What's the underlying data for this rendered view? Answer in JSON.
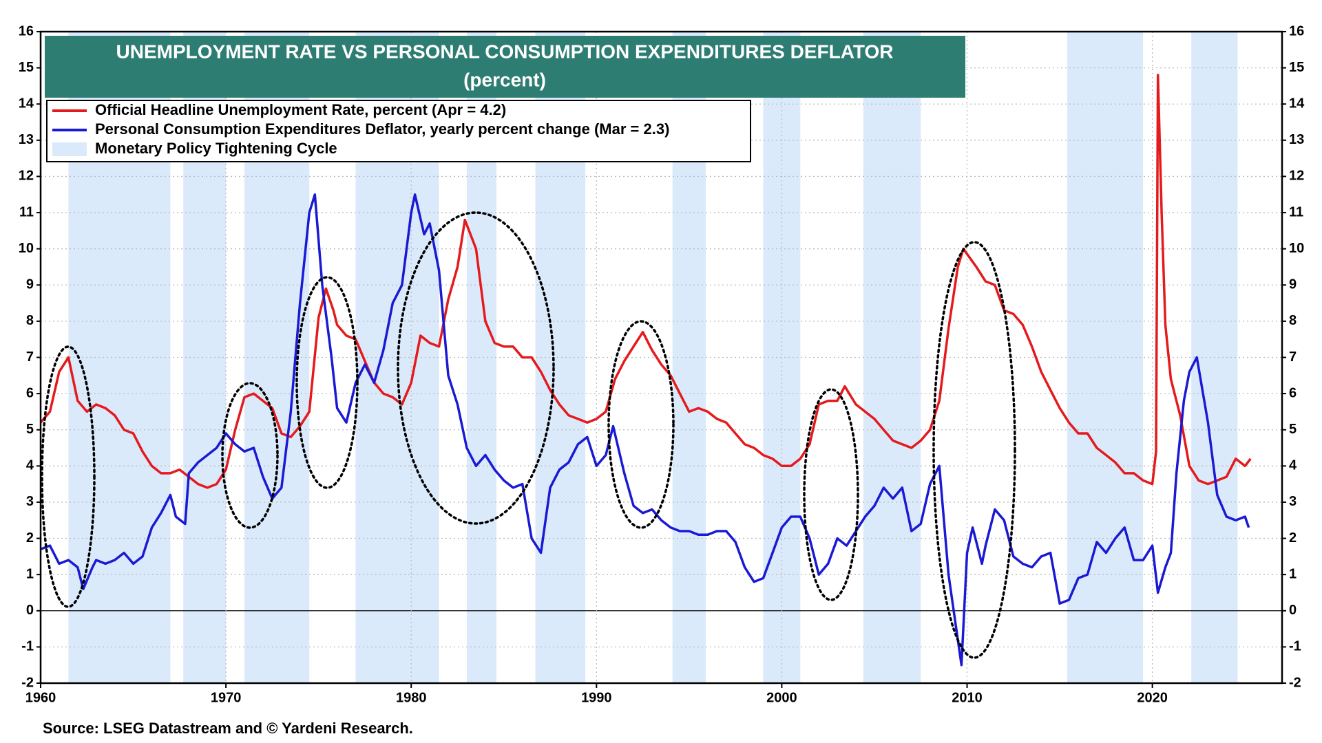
{
  "chart_data": {
    "type": "line",
    "title": "UNEMPLOYMENT RATE VS PERSONAL CONSUMPTION EXPENDITURES DEFLATOR",
    "subtitle": "(percent)",
    "source": "Source: LSEG Datastream and © Yardeni Research.",
    "xlim": [
      1960,
      2027
    ],
    "xticks": [
      1960,
      1970,
      1980,
      1990,
      2000,
      2010,
      2020
    ],
    "ylim": [
      -2,
      16
    ],
    "yticks": [
      -2,
      -1,
      0,
      1,
      2,
      3,
      4,
      5,
      6,
      7,
      8,
      9,
      10,
      11,
      12,
      13,
      14,
      15,
      16
    ],
    "y2lim": [
      -2,
      16
    ],
    "y2ticks": [
      -2,
      -1,
      0,
      1,
      2,
      3,
      4,
      5,
      6,
      7,
      8,
      9,
      10,
      11,
      12,
      13,
      14,
      15,
      16
    ],
    "grid": true,
    "legend": "top-left",
    "bands": {
      "name": "Monetary Policy Tightening Cycle",
      "color": "#dbeafb",
      "ranges": [
        [
          1961.5,
          1967.0
        ],
        [
          1967.7,
          1970.0
        ],
        [
          1971.0,
          1974.5
        ],
        [
          1977.0,
          1981.5
        ],
        [
          1983.0,
          1984.6
        ],
        [
          1986.7,
          1989.4
        ],
        [
          1994.1,
          1995.9
        ],
        [
          1999.0,
          2001.0
        ],
        [
          2004.4,
          2007.5
        ],
        [
          2015.4,
          2019.5
        ],
        [
          2022.1,
          2024.6
        ]
      ]
    },
    "series": [
      {
        "name": "Official Headline Unemployment Rate, percent (Apr = 4.2)",
        "color": "#e41a1c",
        "x": [
          1960,
          1960.5,
          1961,
          1961.5,
          1962,
          1962.5,
          1963,
          1963.5,
          1964,
          1964.5,
          1965,
          1965.5,
          1966,
          1966.5,
          1967,
          1967.5,
          1968,
          1968.5,
          1969,
          1969.5,
          1970,
          1970.5,
          1971,
          1971.5,
          1972,
          1972.5,
          1973,
          1973.5,
          1974,
          1974.5,
          1975,
          1975.4,
          1975.8,
          1976,
          1976.5,
          1977,
          1977.5,
          1978,
          1978.5,
          1979,
          1979.5,
          1980,
          1980.5,
          1981,
          1981.5,
          1982,
          1982.5,
          1982.9,
          1983.5,
          1984,
          1984.5,
          1985,
          1985.5,
          1986,
          1986.5,
          1987,
          1987.5,
          1988,
          1988.5,
          1989,
          1989.5,
          1990,
          1990.5,
          1991,
          1991.5,
          1992,
          1992.5,
          1993,
          1993.5,
          1994,
          1994.5,
          1995,
          1995.5,
          1996,
          1996.5,
          1997,
          1997.5,
          1998,
          1998.5,
          1999,
          1999.5,
          2000,
          2000.5,
          2001,
          2001.5,
          2002,
          2002.5,
          2003,
          2003.4,
          2004,
          2004.5,
          2005,
          2005.5,
          2006,
          2006.5,
          2007,
          2007.5,
          2008,
          2008.5,
          2009,
          2009.5,
          2009.8,
          2010.5,
          2011,
          2011.5,
          2012,
          2012.5,
          2013,
          2013.5,
          2014,
          2014.5,
          2015,
          2015.5,
          2016,
          2016.5,
          2017,
          2017.5,
          2018,
          2018.5,
          2019,
          2019.5,
          2020,
          2020.2,
          2020.3,
          2020.5,
          2020.7,
          2021,
          2021.5,
          2022,
          2022.5,
          2023,
          2023.5,
          2024,
          2024.5,
          2025,
          2025.3
        ],
        "values": [
          5.2,
          5.5,
          6.6,
          7.0,
          5.8,
          5.5,
          5.7,
          5.6,
          5.4,
          5.0,
          4.9,
          4.4,
          4.0,
          3.8,
          3.8,
          3.9,
          3.7,
          3.5,
          3.4,
          3.5,
          3.9,
          5.0,
          5.9,
          6.0,
          5.8,
          5.6,
          4.9,
          4.8,
          5.1,
          5.5,
          8.1,
          8.9,
          8.3,
          7.9,
          7.6,
          7.5,
          6.9,
          6.3,
          6.0,
          5.9,
          5.7,
          6.3,
          7.6,
          7.4,
          7.3,
          8.6,
          9.5,
          10.8,
          10.0,
          8.0,
          7.4,
          7.3,
          7.3,
          7.0,
          7.0,
          6.6,
          6.1,
          5.7,
          5.4,
          5.3,
          5.2,
          5.3,
          5.5,
          6.4,
          6.9,
          7.3,
          7.7,
          7.2,
          6.8,
          6.5,
          6.0,
          5.5,
          5.6,
          5.5,
          5.3,
          5.2,
          4.9,
          4.6,
          4.5,
          4.3,
          4.2,
          4.0,
          4.0,
          4.2,
          4.6,
          5.7,
          5.8,
          5.8,
          6.2,
          5.7,
          5.5,
          5.3,
          5.0,
          4.7,
          4.6,
          4.5,
          4.7,
          5.0,
          5.8,
          7.8,
          9.5,
          10.0,
          9.5,
          9.1,
          9.0,
          8.3,
          8.2,
          7.9,
          7.3,
          6.6,
          6.1,
          5.6,
          5.2,
          4.9,
          4.9,
          4.5,
          4.3,
          4.1,
          3.8,
          3.8,
          3.6,
          3.5,
          4.4,
          14.8,
          11.0,
          7.9,
          6.4,
          5.4,
          4.0,
          3.6,
          3.5,
          3.6,
          3.7,
          4.2,
          4.0,
          4.2
        ]
      },
      {
        "name": "Personal Consumption Expenditures Deflator, yearly percent change (Mar = 2.3)",
        "color": "#1a1ad4",
        "x": [
          1960,
          1960.5,
          1961,
          1961.5,
          1962,
          1962.3,
          1962.8,
          1963,
          1963.5,
          1964,
          1964.5,
          1965,
          1965.5,
          1966,
          1966.5,
          1967,
          1967.3,
          1967.8,
          1968,
          1968.5,
          1969,
          1969.5,
          1970,
          1970.5,
          1971,
          1971.5,
          1972,
          1972.5,
          1973,
          1973.5,
          1974,
          1974.5,
          1974.8,
          1975.2,
          1975.7,
          1976,
          1976.5,
          1977,
          1977.5,
          1978,
          1978.5,
          1979,
          1979.5,
          1980,
          1980.2,
          1980.7,
          1981,
          1981.5,
          1982,
          1982.5,
          1983,
          1983.5,
          1984,
          1984.5,
          1985,
          1985.5,
          1986,
          1986.5,
          1987,
          1987.5,
          1988,
          1988.5,
          1989,
          1989.5,
          1990,
          1990.5,
          1990.9,
          1991.5,
          1992,
          1992.5,
          1993,
          1993.5,
          1994,
          1994.5,
          1995,
          1995.5,
          1996,
          1996.5,
          1997,
          1997.5,
          1998,
          1998.5,
          1999,
          1999.5,
          2000,
          2000.5,
          2001,
          2001.5,
          2002,
          2002.5,
          2003,
          2003.5,
          2004,
          2004.5,
          2005,
          2005.5,
          2006,
          2006.5,
          2007,
          2007.5,
          2008,
          2008.5,
          2009,
          2009.5,
          2009.7,
          2010,
          2010.3,
          2010.8,
          2011,
          2011.5,
          2012,
          2012.5,
          2013,
          2013.5,
          2014,
          2014.5,
          2015,
          2015.5,
          2016,
          2016.5,
          2017,
          2017.5,
          2018,
          2018.5,
          2019,
          2019.5,
          2020,
          2020.3,
          2020.7,
          2021,
          2021.3,
          2021.7,
          2022,
          2022.4,
          2022.8,
          2023,
          2023.5,
          2024,
          2024.5,
          2025,
          2025.2
        ],
        "values": [
          1.7,
          1.8,
          1.3,
          1.4,
          1.2,
          0.6,
          1.2,
          1.4,
          1.3,
          1.4,
          1.6,
          1.3,
          1.5,
          2.3,
          2.7,
          3.2,
          2.6,
          2.4,
          3.8,
          4.1,
          4.3,
          4.5,
          4.9,
          4.6,
          4.4,
          4.5,
          3.7,
          3.1,
          3.4,
          5.5,
          8.5,
          11.0,
          11.5,
          9.0,
          7.0,
          5.6,
          5.2,
          6.3,
          6.8,
          6.3,
          7.2,
          8.5,
          9.0,
          11.0,
          11.5,
          10.4,
          10.7,
          9.4,
          6.5,
          5.7,
          4.5,
          4.0,
          4.3,
          3.9,
          3.6,
          3.4,
          3.5,
          2.0,
          1.6,
          3.4,
          3.9,
          4.1,
          4.6,
          4.8,
          4.0,
          4.3,
          5.1,
          3.8,
          2.9,
          2.7,
          2.8,
          2.5,
          2.3,
          2.2,
          2.2,
          2.1,
          2.1,
          2.2,
          2.2,
          1.9,
          1.2,
          0.8,
          0.9,
          1.6,
          2.3,
          2.6,
          2.6,
          2.0,
          1.0,
          1.3,
          2.0,
          1.8,
          2.2,
          2.6,
          2.9,
          3.4,
          3.1,
          3.4,
          2.2,
          2.4,
          3.5,
          4.0,
          1.0,
          -0.8,
          -1.5,
          1.6,
          2.3,
          1.3,
          1.8,
          2.8,
          2.5,
          1.5,
          1.3,
          1.2,
          1.5,
          1.6,
          0.2,
          0.3,
          0.9,
          1.0,
          1.9,
          1.6,
          2.0,
          2.3,
          1.4,
          1.4,
          1.8,
          0.5,
          1.2,
          1.6,
          3.8,
          5.8,
          6.6,
          7.0,
          5.8,
          5.2,
          3.2,
          2.6,
          2.5,
          2.6,
          2.3
        ]
      }
    ]
  }
}
